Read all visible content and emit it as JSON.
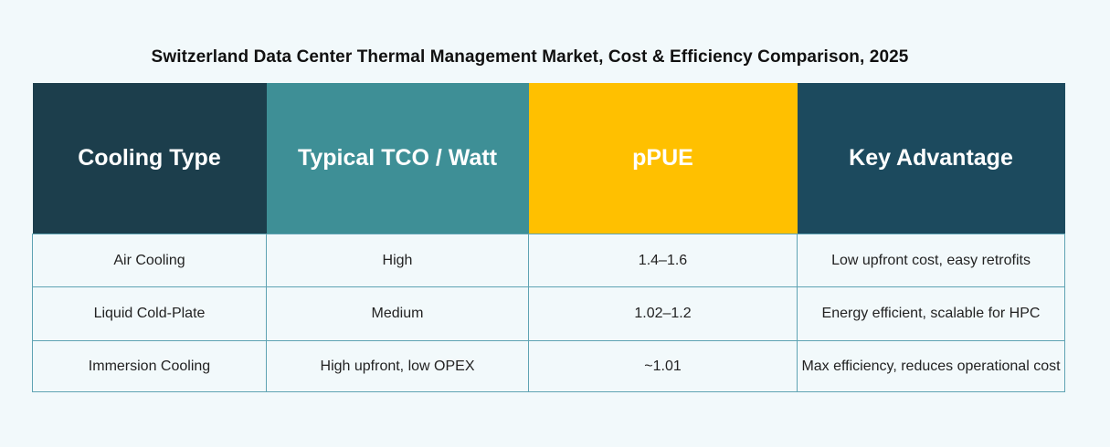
{
  "chart_data": {
    "type": "table",
    "title": "Switzerland Data Center Thermal Management Market, Cost & Efficiency Comparison, 2025",
    "columns": [
      "Cooling Type",
      "Typical TCO / Watt",
      "pPUE",
      "Key Advantage"
    ],
    "rows": [
      [
        "Air Cooling",
        "High",
        "1.4–1.6",
        "Low upfront cost, easy retrofits"
      ],
      [
        "Liquid Cold-Plate",
        "Medium",
        "1.02–1.2",
        "Energy efficient, scalable for HPC"
      ],
      [
        "Immersion Cooling",
        "High upfront, low OPEX",
        "~1.01",
        "Max efficiency, reduces operational cost"
      ]
    ],
    "header_colors": [
      "#1c3e4c",
      "#3e8f96",
      "#ffc000",
      "#1c4a5e"
    ],
    "border_color": "#5fa3b3"
  }
}
